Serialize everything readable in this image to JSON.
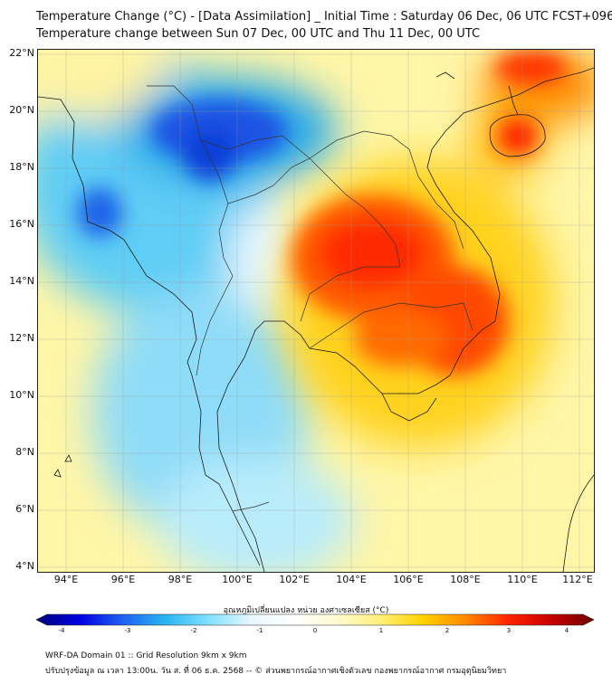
{
  "titles": {
    "line1": "Temperature Change (°C) - [Data Assimilation] _ Initial Time : Saturday 06 Dec, 06 UTC FCST+096",
    "line2": "Temperature change between Sun 07 Dec, 00 UTC and Thu 11 Dec, 00 UTC"
  },
  "map": {
    "lat_range": [
      4,
      22.3
    ],
    "lon_range": [
      93,
      112.5
    ],
    "lat_ticks": [
      "22°N",
      "20°N",
      "18°N",
      "16°N",
      "14°N",
      "12°N",
      "10°N",
      "8°N",
      "6°N",
      "4°N"
    ],
    "lon_ticks": [
      "94°E",
      "96°E",
      "98°E",
      "100°E",
      "102°E",
      "104°E",
      "106°E",
      "108°E",
      "110°E",
      "112°E"
    ],
    "grid": true,
    "background_color": "#fff6a8"
  },
  "colorbar": {
    "title": "อุณหภูมิเปลี่ยนแปลง หน่วย องศาเซลเซียส (°C)",
    "ticks": [
      "-4",
      "-3",
      "-2",
      "-1",
      "0",
      "1",
      "2",
      "3",
      "4"
    ],
    "colors": [
      "#00007a",
      "#0000e0",
      "#1f5ff0",
      "#27b4f0",
      "#7fe0ff",
      "#e8f8ff",
      "#ffffff",
      "#fffbd0",
      "#fff07a",
      "#ffd200",
      "#ff8a00",
      "#ff2400",
      "#c80000",
      "#6e0000"
    ]
  },
  "footer": {
    "line1": "WRF-DA Domain 01 :: Grid Resolution 9km x 9km",
    "line2": "ปรับปรุงข้อมูล ณ เวลา 13:00น. วัน ส. ที่ 06 ธ.ค. 2568 -- © ส่วนพยากรณ์อากาศเชิงตัวเลข กองพยากรณ์อากาศ กรมอุตุนิยมวิทยา"
  }
}
